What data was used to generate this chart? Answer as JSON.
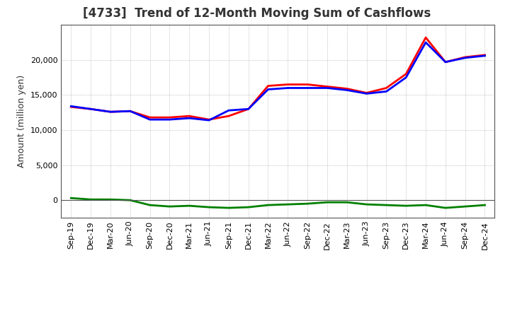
{
  "title": "[4733]  Trend of 12-Month Moving Sum of Cashflows",
  "ylabel": "Amount (million yen)",
  "ylim": [
    -2500,
    25000
  ],
  "yticks": [
    0,
    5000,
    10000,
    15000,
    20000
  ],
  "x_labels": [
    "Sep-19",
    "Dec-19",
    "Mar-20",
    "Jun-20",
    "Sep-20",
    "Dec-20",
    "Mar-21",
    "Jun-21",
    "Sep-21",
    "Dec-21",
    "Mar-22",
    "Jun-22",
    "Sep-22",
    "Dec-22",
    "Mar-23",
    "Jun-23",
    "Sep-23",
    "Dec-23",
    "Mar-24",
    "Jun-24",
    "Sep-24",
    "Dec-24"
  ],
  "operating_cashflow": [
    13300,
    13000,
    12600,
    12700,
    11800,
    11800,
    12000,
    11500,
    12000,
    13000,
    16300,
    16500,
    16500,
    16200,
    15900,
    15300,
    16000,
    18000,
    23200,
    19700,
    20400,
    20700
  ],
  "investing_cashflow": [
    300,
    100,
    100,
    0,
    -700,
    -900,
    -800,
    -1000,
    -1100,
    -1000,
    -700,
    -600,
    -500,
    -300,
    -300,
    -600,
    -700,
    -800,
    -700,
    -1100,
    -900,
    -700
  ],
  "free_cashflow": [
    13400,
    13000,
    12600,
    12700,
    11500,
    11500,
    11700,
    11400,
    12800,
    13000,
    15800,
    16000,
    16000,
    16000,
    15700,
    15200,
    15500,
    17500,
    22500,
    19700,
    20300,
    20600
  ],
  "operating_color": "#ff0000",
  "investing_color": "#008000",
  "free_color": "#0000ff",
  "line_width": 2.0,
  "background_color": "#ffffff",
  "grid_color": "#888888",
  "title_fontsize": 12,
  "title_color": "#333333",
  "legend_fontsize": 9,
  "axis_fontsize": 8,
  "ylabel_fontsize": 9
}
